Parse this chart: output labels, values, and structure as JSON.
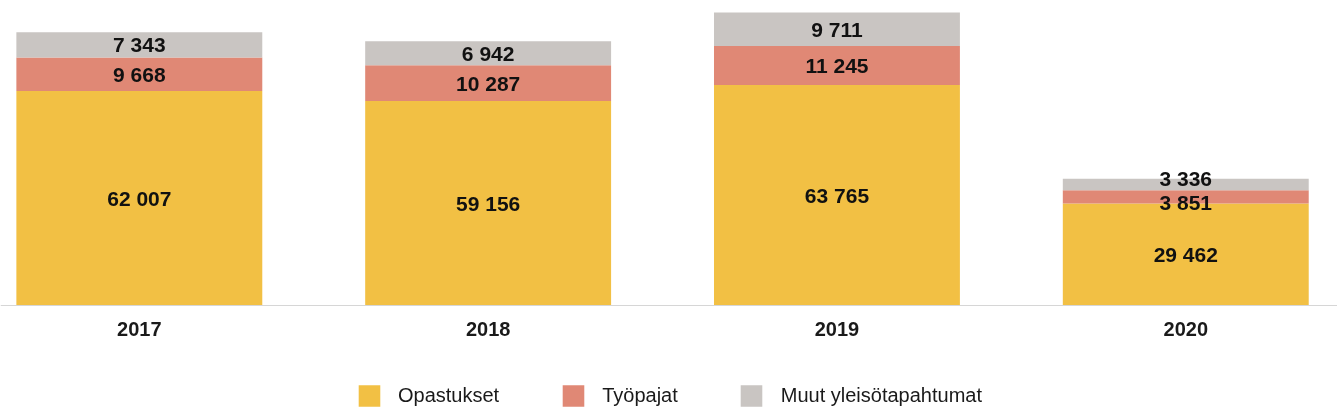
{
  "chart_data": {
    "type": "bar",
    "stacked": true,
    "categories": [
      "2017",
      "2018",
      "2019",
      "2020"
    ],
    "series": [
      {
        "name": "Opastukset",
        "color": "#f2c044",
        "values": [
          62007,
          59156,
          63765,
          29462
        ],
        "value_labels": [
          "62 007",
          "59 156",
          "63 765",
          "29 462"
        ]
      },
      {
        "name": "Työpajat",
        "color": "#e08875",
        "values": [
          9668,
          10287,
          11245,
          3851
        ],
        "value_labels": [
          "9 668",
          "10 287",
          "11 245",
          "3 851"
        ]
      },
      {
        "name": "Muut yleisötapahtumat",
        "color": "#c9c5c2",
        "values": [
          7343,
          6942,
          9711,
          3336
        ],
        "value_labels": [
          "7 343",
          "6 942",
          "9 711",
          "3 336"
        ]
      }
    ],
    "legend": "bottom",
    "tick_labels": "x"
  }
}
